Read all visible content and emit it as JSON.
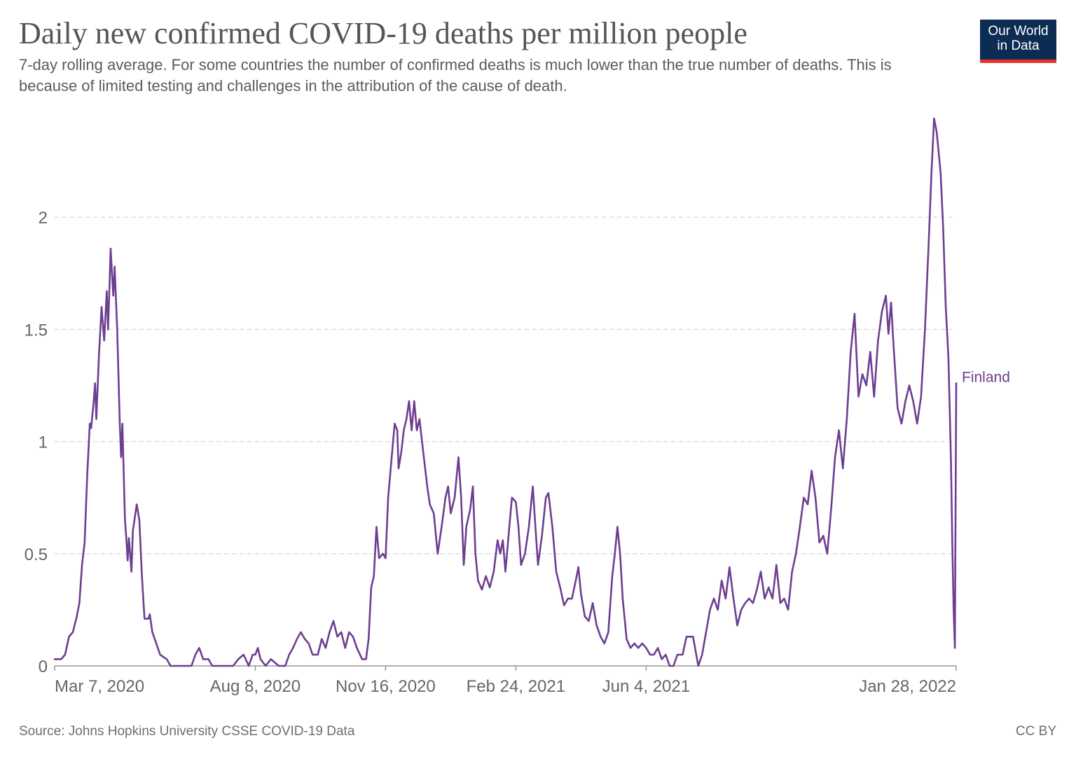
{
  "header": {
    "title": "Daily new confirmed COVID-19 deaths per million people",
    "subtitle": "7-day rolling average. For some countries the number of confirmed deaths is much lower than the true number of deaths. This is because of limited testing and challenges in the attribution of the cause of death.",
    "logo_line1": "Our World",
    "logo_line2": "in Data"
  },
  "footer": {
    "source": "Source: Johns Hopkins University CSSE COVID-19 Data",
    "license": "CC BY"
  },
  "colors": {
    "series": "#6d3e91",
    "grid": "#dddddd",
    "axis": "#999999",
    "text": "#666666",
    "logo_bg": "#0c2c54",
    "logo_accent": "#e6332a"
  },
  "chart_data": {
    "type": "line",
    "title": "Daily new confirmed COVID-19 deaths per million people",
    "xlabel": "",
    "ylabel": "",
    "xlim": [
      "2020-03-07",
      "2022-01-28"
    ],
    "ylim": [
      0,
      2.5
    ],
    "yticks": [
      0,
      0.5,
      1,
      1.5,
      2
    ],
    "ytick_labels": [
      "0",
      "0.5",
      "1",
      "1.5",
      "2"
    ],
    "xticks": [
      "2020-03-07",
      "2020-08-08",
      "2020-11-16",
      "2021-02-24",
      "2021-06-04",
      "2022-01-28"
    ],
    "xtick_labels": [
      "Mar 7, 2020",
      "Aug 8, 2020",
      "Nov 16, 2020",
      "Feb 24, 2021",
      "Jun 4, 2021",
      "Jan 28, 2022"
    ],
    "grid": "horizontal dashed",
    "series": [
      {
        "name": "Finland",
        "color": "#6d3e91",
        "points": [
          [
            "2020-03-07",
            0.03
          ],
          [
            "2020-03-12",
            0.03
          ],
          [
            "2020-03-15",
            0.05
          ],
          [
            "2020-03-18",
            0.13
          ],
          [
            "2020-03-21",
            0.15
          ],
          [
            "2020-03-24",
            0.22
          ],
          [
            "2020-03-26",
            0.28
          ],
          [
            "2020-03-28",
            0.45
          ],
          [
            "2020-03-30",
            0.55
          ],
          [
            "2020-04-01",
            0.85
          ],
          [
            "2020-04-03",
            1.08
          ],
          [
            "2020-04-04",
            1.06
          ],
          [
            "2020-04-06",
            1.18
          ],
          [
            "2020-04-07",
            1.26
          ],
          [
            "2020-04-08",
            1.1
          ],
          [
            "2020-04-10",
            1.38
          ],
          [
            "2020-04-12",
            1.6
          ],
          [
            "2020-04-14",
            1.45
          ],
          [
            "2020-04-16",
            1.67
          ],
          [
            "2020-04-17",
            1.5
          ],
          [
            "2020-04-19",
            1.86
          ],
          [
            "2020-04-20",
            1.75
          ],
          [
            "2020-04-21",
            1.65
          ],
          [
            "2020-04-22",
            1.78
          ],
          [
            "2020-04-24",
            1.5
          ],
          [
            "2020-04-26",
            1.08
          ],
          [
            "2020-04-27",
            0.93
          ],
          [
            "2020-04-28",
            1.08
          ],
          [
            "2020-04-30",
            0.65
          ],
          [
            "2020-05-01",
            0.57
          ],
          [
            "2020-05-02",
            0.47
          ],
          [
            "2020-05-03",
            0.57
          ],
          [
            "2020-05-05",
            0.42
          ],
          [
            "2020-05-06",
            0.6
          ],
          [
            "2020-05-09",
            0.72
          ],
          [
            "2020-05-11",
            0.65
          ],
          [
            "2020-05-13",
            0.4
          ],
          [
            "2020-05-15",
            0.21
          ],
          [
            "2020-05-18",
            0.21
          ],
          [
            "2020-05-19",
            0.23
          ],
          [
            "2020-05-21",
            0.15
          ],
          [
            "2020-05-24",
            0.1
          ],
          [
            "2020-05-27",
            0.05
          ],
          [
            "2020-06-01",
            0.03
          ],
          [
            "2020-06-04",
            0.0
          ],
          [
            "2020-06-20",
            0.0
          ],
          [
            "2020-06-23",
            0.05
          ],
          [
            "2020-06-26",
            0.08
          ],
          [
            "2020-06-29",
            0.03
          ],
          [
            "2020-07-03",
            0.03
          ],
          [
            "2020-07-06",
            0.0
          ],
          [
            "2020-07-22",
            0.0
          ],
          [
            "2020-07-26",
            0.03
          ],
          [
            "2020-07-30",
            0.05
          ],
          [
            "2020-08-03",
            0.0
          ],
          [
            "2020-08-06",
            0.05
          ],
          [
            "2020-08-08",
            0.05
          ],
          [
            "2020-08-10",
            0.08
          ],
          [
            "2020-08-12",
            0.03
          ],
          [
            "2020-08-16",
            0.0
          ],
          [
            "2020-08-20",
            0.03
          ],
          [
            "2020-08-26",
            0.0
          ],
          [
            "2020-08-31",
            0.0
          ],
          [
            "2020-09-03",
            0.05
          ],
          [
            "2020-09-06",
            0.08
          ],
          [
            "2020-09-09",
            0.12
          ],
          [
            "2020-09-12",
            0.15
          ],
          [
            "2020-09-15",
            0.12
          ],
          [
            "2020-09-18",
            0.1
          ],
          [
            "2020-09-21",
            0.05
          ],
          [
            "2020-09-25",
            0.05
          ],
          [
            "2020-09-28",
            0.12
          ],
          [
            "2020-10-01",
            0.08
          ],
          [
            "2020-10-04",
            0.15
          ],
          [
            "2020-10-07",
            0.2
          ],
          [
            "2020-10-10",
            0.13
          ],
          [
            "2020-10-13",
            0.15
          ],
          [
            "2020-10-16",
            0.08
          ],
          [
            "2020-10-19",
            0.15
          ],
          [
            "2020-10-22",
            0.13
          ],
          [
            "2020-10-25",
            0.08
          ],
          [
            "2020-10-29",
            0.03
          ],
          [
            "2020-11-01",
            0.03
          ],
          [
            "2020-11-03",
            0.12
          ],
          [
            "2020-11-05",
            0.35
          ],
          [
            "2020-11-07",
            0.4
          ],
          [
            "2020-11-09",
            0.62
          ],
          [
            "2020-11-11",
            0.48
          ],
          [
            "2020-11-14",
            0.5
          ],
          [
            "2020-11-16",
            0.48
          ],
          [
            "2020-11-18",
            0.75
          ],
          [
            "2020-11-21",
            0.95
          ],
          [
            "2020-11-23",
            1.08
          ],
          [
            "2020-11-25",
            1.05
          ],
          [
            "2020-11-26",
            0.88
          ],
          [
            "2020-11-28",
            0.95
          ],
          [
            "2020-11-30",
            1.05
          ],
          [
            "2020-12-02",
            1.1
          ],
          [
            "2020-12-04",
            1.18
          ],
          [
            "2020-12-06",
            1.05
          ],
          [
            "2020-12-08",
            1.18
          ],
          [
            "2020-12-10",
            1.05
          ],
          [
            "2020-12-12",
            1.1
          ],
          [
            "2020-12-15",
            0.95
          ],
          [
            "2020-12-18",
            0.8
          ],
          [
            "2020-12-20",
            0.72
          ],
          [
            "2020-12-23",
            0.68
          ],
          [
            "2020-12-26",
            0.5
          ],
          [
            "2020-12-29",
            0.62
          ],
          [
            "2021-01-01",
            0.75
          ],
          [
            "2021-01-03",
            0.8
          ],
          [
            "2021-01-05",
            0.68
          ],
          [
            "2021-01-08",
            0.75
          ],
          [
            "2021-01-11",
            0.93
          ],
          [
            "2021-01-13",
            0.75
          ],
          [
            "2021-01-15",
            0.45
          ],
          [
            "2021-01-17",
            0.62
          ],
          [
            "2021-01-20",
            0.7
          ],
          [
            "2021-01-22",
            0.8
          ],
          [
            "2021-01-24",
            0.5
          ],
          [
            "2021-01-26",
            0.38
          ],
          [
            "2021-01-29",
            0.34
          ],
          [
            "2021-02-01",
            0.4
          ],
          [
            "2021-02-04",
            0.35
          ],
          [
            "2021-02-07",
            0.42
          ],
          [
            "2021-02-10",
            0.56
          ],
          [
            "2021-02-12",
            0.5
          ],
          [
            "2021-02-14",
            0.56
          ],
          [
            "2021-02-16",
            0.42
          ],
          [
            "2021-02-19",
            0.62
          ],
          [
            "2021-02-21",
            0.75
          ],
          [
            "2021-02-24",
            0.73
          ],
          [
            "2021-02-26",
            0.62
          ],
          [
            "2021-02-28",
            0.45
          ],
          [
            "2021-03-03",
            0.5
          ],
          [
            "2021-03-06",
            0.62
          ],
          [
            "2021-03-09",
            0.8
          ],
          [
            "2021-03-11",
            0.62
          ],
          [
            "2021-03-13",
            0.45
          ],
          [
            "2021-03-16",
            0.58
          ],
          [
            "2021-03-19",
            0.75
          ],
          [
            "2021-03-21",
            0.77
          ],
          [
            "2021-03-24",
            0.62
          ],
          [
            "2021-03-27",
            0.42
          ],
          [
            "2021-03-30",
            0.35
          ],
          [
            "2021-04-02",
            0.27
          ],
          [
            "2021-04-05",
            0.3
          ],
          [
            "2021-04-08",
            0.3
          ],
          [
            "2021-04-11",
            0.38
          ],
          [
            "2021-04-13",
            0.44
          ],
          [
            "2021-04-15",
            0.32
          ],
          [
            "2021-04-18",
            0.22
          ],
          [
            "2021-04-21",
            0.2
          ],
          [
            "2021-04-24",
            0.28
          ],
          [
            "2021-04-27",
            0.18
          ],
          [
            "2021-04-30",
            0.13
          ],
          [
            "2021-05-03",
            0.1
          ],
          [
            "2021-05-06",
            0.15
          ],
          [
            "2021-05-09",
            0.4
          ],
          [
            "2021-05-11",
            0.5
          ],
          [
            "2021-05-13",
            0.62
          ],
          [
            "2021-05-15",
            0.5
          ],
          [
            "2021-05-17",
            0.3
          ],
          [
            "2021-05-20",
            0.12
          ],
          [
            "2021-05-23",
            0.08
          ],
          [
            "2021-05-26",
            0.1
          ],
          [
            "2021-05-29",
            0.08
          ],
          [
            "2021-06-01",
            0.1
          ],
          [
            "2021-06-04",
            0.08
          ],
          [
            "2021-06-07",
            0.05
          ],
          [
            "2021-06-10",
            0.05
          ],
          [
            "2021-06-13",
            0.08
          ],
          [
            "2021-06-16",
            0.03
          ],
          [
            "2021-06-19",
            0.05
          ],
          [
            "2021-06-22",
            0.0
          ],
          [
            "2021-06-25",
            0.0
          ],
          [
            "2021-06-28",
            0.05
          ],
          [
            "2021-07-02",
            0.05
          ],
          [
            "2021-07-05",
            0.13
          ],
          [
            "2021-07-10",
            0.13
          ],
          [
            "2021-07-14",
            0.0
          ],
          [
            "2021-07-17",
            0.05
          ],
          [
            "2021-07-20",
            0.15
          ],
          [
            "2021-07-23",
            0.25
          ],
          [
            "2021-07-26",
            0.3
          ],
          [
            "2021-07-29",
            0.25
          ],
          [
            "2021-08-01",
            0.38
          ],
          [
            "2021-08-04",
            0.3
          ],
          [
            "2021-08-07",
            0.44
          ],
          [
            "2021-08-10",
            0.3
          ],
          [
            "2021-08-13",
            0.18
          ],
          [
            "2021-08-16",
            0.25
          ],
          [
            "2021-08-19",
            0.28
          ],
          [
            "2021-08-22",
            0.3
          ],
          [
            "2021-08-25",
            0.28
          ],
          [
            "2021-08-28",
            0.34
          ],
          [
            "2021-08-31",
            0.42
          ],
          [
            "2021-09-03",
            0.3
          ],
          [
            "2021-09-06",
            0.35
          ],
          [
            "2021-09-09",
            0.3
          ],
          [
            "2021-09-12",
            0.45
          ],
          [
            "2021-09-15",
            0.28
          ],
          [
            "2021-09-18",
            0.3
          ],
          [
            "2021-09-21",
            0.25
          ],
          [
            "2021-09-24",
            0.42
          ],
          [
            "2021-09-27",
            0.5
          ],
          [
            "2021-09-30",
            0.62
          ],
          [
            "2021-10-03",
            0.75
          ],
          [
            "2021-10-06",
            0.72
          ],
          [
            "2021-10-09",
            0.87
          ],
          [
            "2021-10-12",
            0.75
          ],
          [
            "2021-10-15",
            0.55
          ],
          [
            "2021-10-18",
            0.58
          ],
          [
            "2021-10-21",
            0.5
          ],
          [
            "2021-10-24",
            0.7
          ],
          [
            "2021-10-27",
            0.93
          ],
          [
            "2021-10-30",
            1.05
          ],
          [
            "2021-11-02",
            0.88
          ],
          [
            "2021-11-05",
            1.1
          ],
          [
            "2021-11-08",
            1.4
          ],
          [
            "2021-11-11",
            1.57
          ],
          [
            "2021-11-14",
            1.2
          ],
          [
            "2021-11-17",
            1.3
          ],
          [
            "2021-11-20",
            1.25
          ],
          [
            "2021-11-23",
            1.4
          ],
          [
            "2021-11-26",
            1.2
          ],
          [
            "2021-11-29",
            1.45
          ],
          [
            "2021-12-02",
            1.58
          ],
          [
            "2021-12-05",
            1.65
          ],
          [
            "2021-12-07",
            1.48
          ],
          [
            "2021-12-09",
            1.62
          ],
          [
            "2021-12-11",
            1.42
          ],
          [
            "2021-12-14",
            1.15
          ],
          [
            "2021-12-17",
            1.08
          ],
          [
            "2021-12-20",
            1.18
          ],
          [
            "2021-12-23",
            1.25
          ],
          [
            "2021-12-26",
            1.18
          ],
          [
            "2021-12-29",
            1.08
          ],
          [
            "2022-01-01",
            1.2
          ],
          [
            "2022-01-04",
            1.5
          ],
          [
            "2022-01-07",
            1.9
          ],
          [
            "2022-01-09",
            2.2
          ],
          [
            "2022-01-11",
            2.44
          ],
          [
            "2022-01-13",
            2.38
          ],
          [
            "2022-01-16",
            2.2
          ],
          [
            "2022-01-18",
            1.95
          ],
          [
            "2022-01-20",
            1.6
          ],
          [
            "2022-01-22",
            1.38
          ],
          [
            "2022-01-23",
            1.15
          ],
          [
            "2022-01-24",
            0.9
          ],
          [
            "2022-01-25",
            0.55
          ],
          [
            "2022-01-26",
            0.25
          ],
          [
            "2022-01-27",
            0.08
          ],
          [
            "2022-01-28",
            1.26
          ]
        ]
      }
    ]
  }
}
